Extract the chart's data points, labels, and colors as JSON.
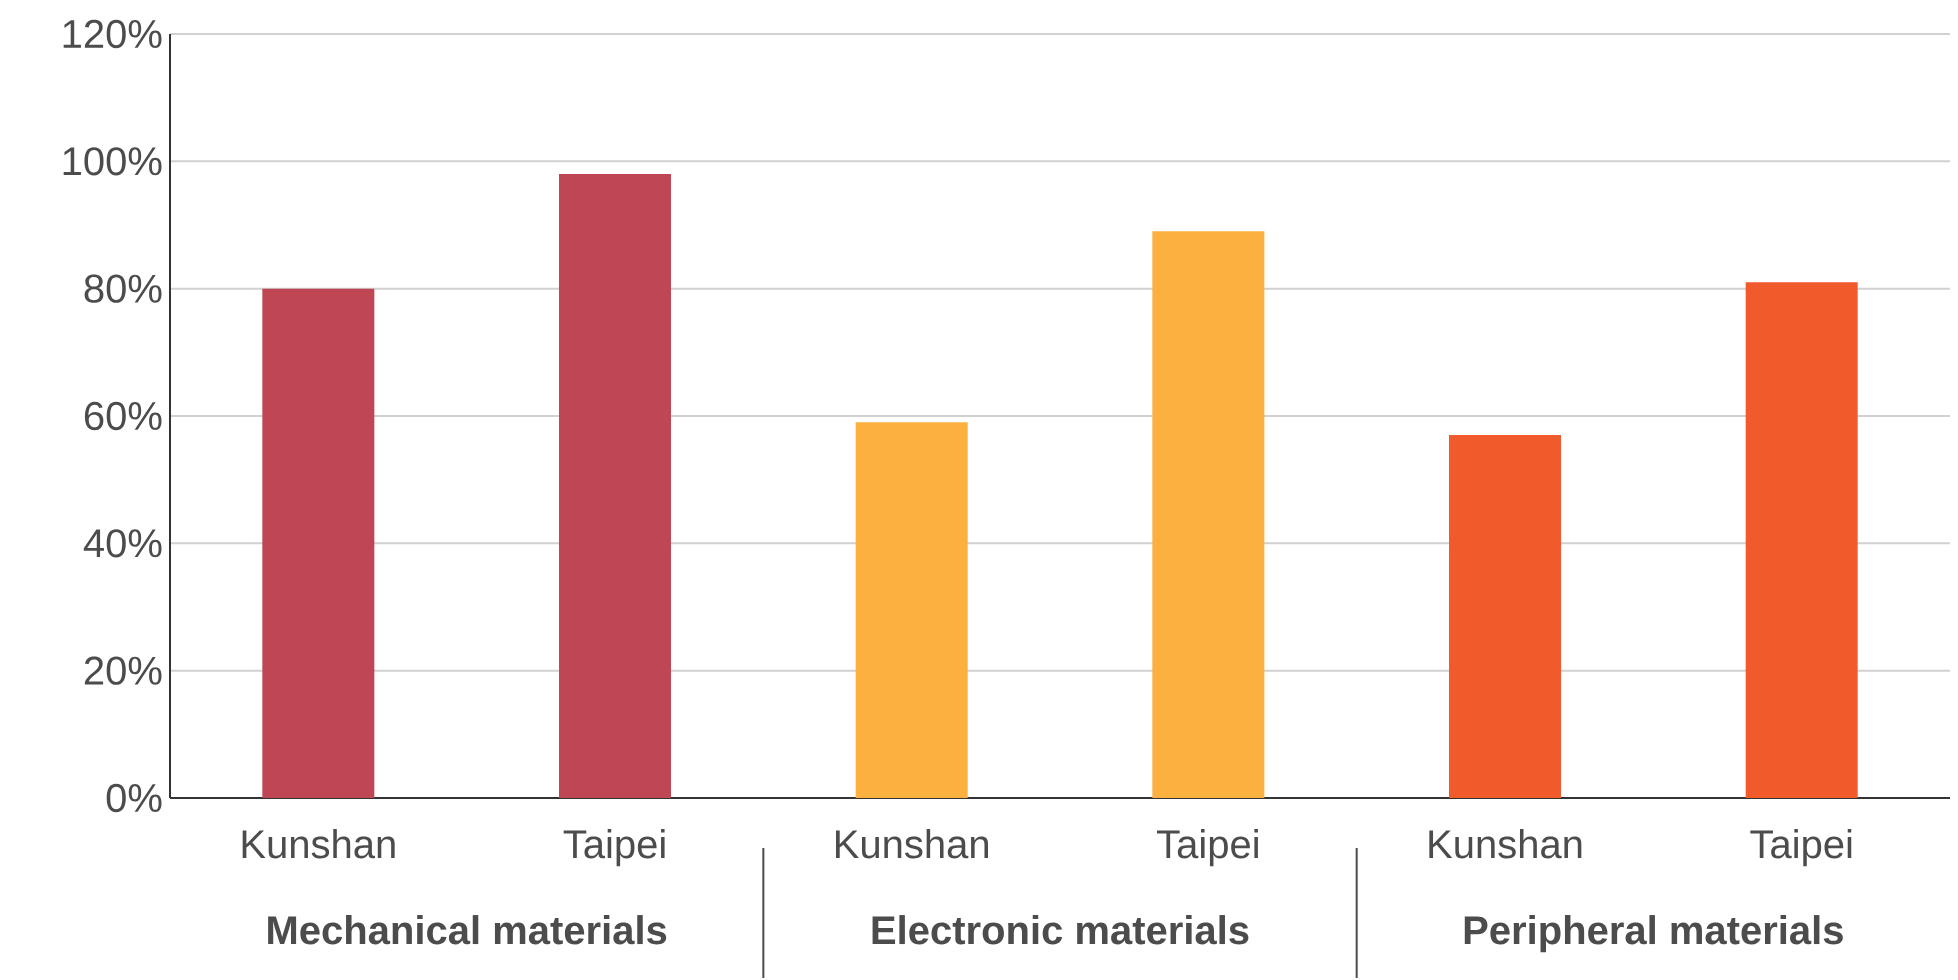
{
  "chart_data": {
    "type": "bar",
    "categories": [
      "Kunshan",
      "Taipei",
      "Kunshan",
      "Taipei",
      "Kunshan",
      "Taipei"
    ],
    "values": [
      80,
      98,
      59,
      89,
      57,
      81
    ],
    "colors": [
      "#be4753",
      "#be4753",
      "#fbb040",
      "#fbb040",
      "#f15a2b",
      "#f15a2b"
    ],
    "ylim": [
      0,
      120
    ],
    "yticks": [
      {
        "value": 0,
        "label": "0%"
      },
      {
        "value": 20,
        "label": "20%"
      },
      {
        "value": 40,
        "label": "40%"
      },
      {
        "value": 60,
        "label": "60%"
      },
      {
        "value": 80,
        "label": "80%"
      },
      {
        "value": 100,
        "label": "100%"
      },
      {
        "value": 120,
        "label": "120%"
      }
    ],
    "grid": "y",
    "annotations": [
      "Mechanical materials",
      "Electronic materials",
      "Peripheral materials"
    ]
  }
}
